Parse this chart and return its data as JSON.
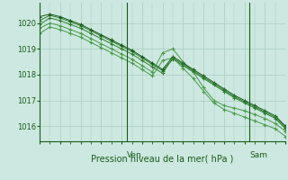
{
  "background_color": "#cce8e0",
  "grid_color": "#aaccbf",
  "line_color_dark": "#1a5c1a",
  "line_color_mid": "#2e7d2e",
  "line_color_light": "#4a9a4a",
  "xlabel": "Pression niveau de la mer( hPa )",
  "xlabel_color": "#1a5c1a",
  "yticks": [
    1016,
    1017,
    1018,
    1019,
    1020
  ],
  "ylim": [
    1015.4,
    1020.8
  ],
  "xlim": [
    0,
    24
  ],
  "ven_x": 8.5,
  "sam_x": 20.5,
  "series": [
    [
      1020.1,
      1020.3,
      1020.2,
      1020.05,
      1019.9,
      1019.7,
      1019.5,
      1019.3,
      1019.1,
      1018.9,
      1018.65,
      1018.4,
      1018.15,
      1018.6,
      1018.35,
      1018.1,
      1017.85,
      1017.6,
      1017.35,
      1017.1,
      1016.9,
      1016.7,
      1016.5,
      1016.3,
      1015.9
    ],
    [
      1019.8,
      1020.0,
      1019.9,
      1019.75,
      1019.6,
      1019.4,
      1019.2,
      1019.0,
      1018.8,
      1018.6,
      1018.35,
      1018.1,
      1018.85,
      1019.0,
      1018.5,
      1018.1,
      1017.5,
      1017.0,
      1016.8,
      1016.7,
      1016.6,
      1016.45,
      1016.3,
      1016.1,
      1015.8
    ],
    [
      1019.6,
      1019.85,
      1019.75,
      1019.6,
      1019.45,
      1019.25,
      1019.05,
      1018.85,
      1018.65,
      1018.45,
      1018.2,
      1017.95,
      1018.55,
      1018.65,
      1018.25,
      1017.85,
      1017.35,
      1016.9,
      1016.65,
      1016.5,
      1016.35,
      1016.2,
      1016.05,
      1015.9,
      1015.6
    ],
    [
      1020.25,
      1020.35,
      1020.25,
      1020.1,
      1019.95,
      1019.75,
      1019.55,
      1019.35,
      1019.15,
      1018.95,
      1018.7,
      1018.45,
      1018.2,
      1018.7,
      1018.45,
      1018.2,
      1017.95,
      1017.7,
      1017.45,
      1017.2,
      1017.0,
      1016.8,
      1016.6,
      1016.4,
      1016.0
    ],
    [
      1019.95,
      1020.2,
      1020.1,
      1019.95,
      1019.8,
      1019.6,
      1019.4,
      1019.2,
      1019.0,
      1018.8,
      1018.55,
      1018.3,
      1018.05,
      1018.65,
      1018.4,
      1018.15,
      1017.9,
      1017.65,
      1017.4,
      1017.15,
      1016.95,
      1016.75,
      1016.55,
      1016.35,
      1015.95
    ]
  ]
}
